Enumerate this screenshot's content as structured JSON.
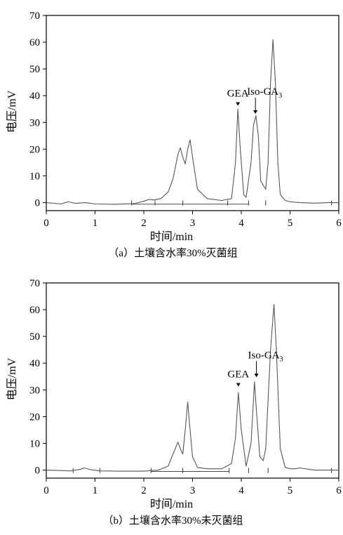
{
  "chart_data": [
    {
      "type": "line",
      "panel_caption": "（a）土壤含水率30%灭菌组",
      "xlabel": "时间/min",
      "ylabel": "电压/mV",
      "xlim": [
        0,
        6
      ],
      "ylim": [
        -3,
        70
      ],
      "xticks": [
        0,
        1,
        2,
        3,
        4,
        5,
        6
      ],
      "yticks": [
        0,
        10,
        20,
        30,
        40,
        50,
        60,
        70
      ],
      "grid": false,
      "series": [
        {
          "color": "#555555",
          "x": [
            0.0,
            0.3,
            0.45,
            0.6,
            0.8,
            1.0,
            1.4,
            1.8,
            2.0,
            2.1,
            2.2,
            2.35,
            2.5,
            2.6,
            2.7,
            2.75,
            2.8,
            2.85,
            2.9,
            2.95,
            3.0,
            3.1,
            3.3,
            3.6,
            3.8,
            3.88,
            3.93,
            3.98,
            4.05,
            4.1,
            4.2,
            4.25,
            4.3,
            4.35,
            4.4,
            4.5,
            4.55,
            4.6,
            4.65,
            4.7,
            4.75,
            4.8,
            4.9,
            5.0,
            5.2,
            5.5,
            5.8,
            6.0
          ],
          "y": [
            0.0,
            -0.5,
            0.3,
            -0.3,
            0.0,
            -0.5,
            -0.6,
            -0.4,
            0.5,
            1.2,
            1.0,
            1.5,
            4.0,
            9.0,
            18.0,
            20.5,
            17.0,
            14.5,
            20.0,
            23.5,
            17.0,
            5.0,
            1.5,
            0.8,
            1.5,
            15.0,
            35.0,
            20.0,
            3.0,
            2.0,
            15.0,
            29.0,
            32.5,
            25.0,
            8.0,
            5.0,
            15.0,
            45.0,
            61.0,
            45.0,
            15.0,
            3.0,
            0.8,
            0.3,
            0.0,
            -0.2,
            0.0,
            0.0
          ]
        }
      ],
      "baseline": {
        "x": [
          1.75,
          4.15
        ],
        "y": -0.6
      },
      "integration_marks": [
        1.75,
        2.23,
        2.8,
        3.72,
        4.15,
        4.5,
        5.85
      ],
      "annotations": [
        {
          "label": "GEA",
          "x": 3.93,
          "y": 36.5
        },
        {
          "label": "Iso-GA",
          "subscript": "3",
          "x": 4.29,
          "y": 33.5
        }
      ]
    },
    {
      "type": "line",
      "panel_caption": "（b）土壤含水率30%未灭菌组",
      "xlabel": "时间/min",
      "ylabel": "电压/mV",
      "xlim": [
        0,
        6
      ],
      "ylim": [
        -3,
        70
      ],
      "xticks": [
        0,
        1,
        2,
        3,
        4,
        5,
        6
      ],
      "yticks": [
        0,
        10,
        20,
        30,
        40,
        50,
        60,
        70
      ],
      "grid": false,
      "series": [
        {
          "color": "#555555",
          "x": [
            0.0,
            0.5,
            0.7,
            0.78,
            0.9,
            1.1,
            1.5,
            2.0,
            2.3,
            2.5,
            2.6,
            2.7,
            2.75,
            2.8,
            2.85,
            2.9,
            2.95,
            3.0,
            3.1,
            3.3,
            3.6,
            3.8,
            3.88,
            3.94,
            4.0,
            4.1,
            4.2,
            4.27,
            4.32,
            4.38,
            4.45,
            4.5,
            4.6,
            4.67,
            4.72,
            4.8,
            4.9,
            5.0,
            5.1,
            5.2,
            5.5,
            6.0
          ],
          "y": [
            0.0,
            -0.3,
            0.3,
            0.8,
            0.2,
            -0.3,
            -0.4,
            -0.4,
            0.0,
            1.5,
            6.0,
            10.5,
            8.0,
            6.0,
            15.0,
            25.5,
            15.0,
            5.0,
            1.0,
            0.5,
            0.5,
            2.5,
            12.0,
            29.0,
            15.0,
            1.5,
            10.0,
            33.0,
            20.0,
            5.0,
            3.5,
            8.0,
            45.0,
            62.0,
            45.0,
            8.0,
            1.0,
            0.5,
            0.5,
            0.8,
            0.0,
            0.0
          ]
        }
      ],
      "baseline": {
        "x": [
          2.15,
          3.75
        ],
        "y": -0.5
      },
      "integration_marks": [
        0.55,
        1.1,
        2.15,
        2.8,
        3.75,
        4.15,
        4.55,
        5.85
      ],
      "annotations": [
        {
          "label": "GEA",
          "x": 3.94,
          "y": 31.5
        },
        {
          "label": "Iso-GA",
          "subscript": "3",
          "x": 4.31,
          "y": 35.0
        }
      ]
    }
  ]
}
